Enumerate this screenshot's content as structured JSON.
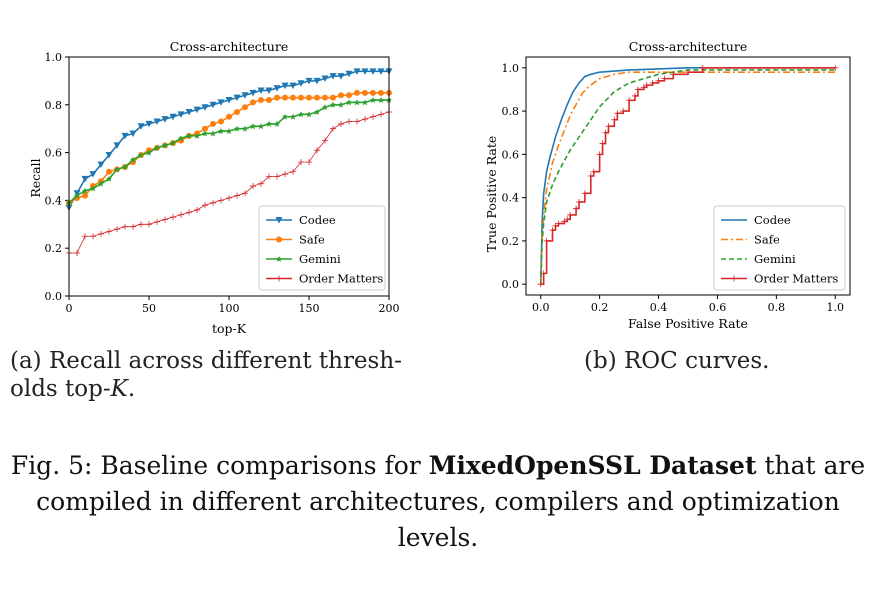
{
  "subcaption_a": {
    "label": "(a)",
    "text": "Recall across different thresh-olds top-",
    "var": "K",
    "tail": "."
  },
  "subcaption_b": {
    "label": "(b)",
    "text": "ROC curves."
  },
  "figure_caption": {
    "prefix": "Fig. 5:",
    "lead": "Baseline comparisons for",
    "bold": "MixedOpenSSL Dataset",
    "rest": "that are compiled in different architectures, compilers and optimization levels."
  },
  "colors": {
    "codee": "#1f77b4",
    "safe": "#ff7f0e",
    "gemini": "#2ca02c",
    "order": "#d62728"
  },
  "chart_data": [
    {
      "type": "line",
      "title": "Cross-architecture",
      "xlabel": "top-K",
      "ylabel": "Recall",
      "xlim": [
        0,
        200
      ],
      "ylim": [
        0,
        1.0
      ],
      "xticks": [
        0,
        50,
        100,
        150,
        200
      ],
      "yticks": [
        0.0,
        0.2,
        0.4,
        0.6,
        0.8,
        1.0
      ],
      "legend": "lower-right",
      "series": [
        {
          "name": "Codee",
          "color": "#1f77b4",
          "marker": "triangle-down",
          "x": [
            0,
            5,
            10,
            15,
            20,
            25,
            30,
            35,
            40,
            45,
            50,
            55,
            60,
            65,
            70,
            75,
            80,
            85,
            90,
            95,
            100,
            105,
            110,
            115,
            120,
            125,
            130,
            135,
            140,
            145,
            150,
            155,
            160,
            165,
            170,
            175,
            180,
            185,
            190,
            195,
            200
          ],
          "y": [
            0.37,
            0.43,
            0.49,
            0.51,
            0.55,
            0.59,
            0.63,
            0.67,
            0.68,
            0.71,
            0.72,
            0.73,
            0.74,
            0.75,
            0.76,
            0.77,
            0.78,
            0.79,
            0.8,
            0.81,
            0.82,
            0.83,
            0.84,
            0.85,
            0.86,
            0.86,
            0.87,
            0.88,
            0.88,
            0.89,
            0.9,
            0.9,
            0.91,
            0.92,
            0.92,
            0.93,
            0.94,
            0.94,
            0.94,
            0.94,
            0.94
          ]
        },
        {
          "name": "Safe",
          "color": "#ff7f0e",
          "marker": "circle",
          "x": [
            0,
            5,
            10,
            15,
            20,
            25,
            30,
            35,
            40,
            45,
            50,
            55,
            60,
            65,
            70,
            75,
            80,
            85,
            90,
            95,
            100,
            105,
            110,
            115,
            120,
            125,
            130,
            135,
            140,
            145,
            150,
            155,
            160,
            165,
            170,
            175,
            180,
            185,
            190,
            195,
            200
          ],
          "y": [
            0.39,
            0.41,
            0.42,
            0.46,
            0.48,
            0.52,
            0.53,
            0.54,
            0.56,
            0.59,
            0.61,
            0.62,
            0.63,
            0.64,
            0.65,
            0.67,
            0.68,
            0.7,
            0.72,
            0.73,
            0.75,
            0.77,
            0.79,
            0.81,
            0.82,
            0.82,
            0.83,
            0.83,
            0.83,
            0.83,
            0.83,
            0.83,
            0.83,
            0.83,
            0.84,
            0.84,
            0.85,
            0.85,
            0.85,
            0.85,
            0.85
          ]
        },
        {
          "name": "Gemini",
          "color": "#2ca02c",
          "marker": "star",
          "x": [
            0,
            5,
            10,
            15,
            20,
            25,
            30,
            35,
            40,
            45,
            50,
            55,
            60,
            65,
            70,
            75,
            80,
            85,
            90,
            95,
            100,
            105,
            110,
            115,
            120,
            125,
            130,
            135,
            140,
            145,
            150,
            155,
            160,
            165,
            170,
            175,
            180,
            185,
            190,
            195,
            200
          ],
          "y": [
            0.39,
            0.42,
            0.44,
            0.45,
            0.47,
            0.49,
            0.53,
            0.54,
            0.57,
            0.59,
            0.6,
            0.62,
            0.63,
            0.64,
            0.66,
            0.67,
            0.67,
            0.68,
            0.68,
            0.69,
            0.69,
            0.7,
            0.7,
            0.71,
            0.71,
            0.72,
            0.72,
            0.75,
            0.75,
            0.76,
            0.76,
            0.77,
            0.79,
            0.8,
            0.8,
            0.81,
            0.81,
            0.81,
            0.82,
            0.82,
            0.82
          ]
        },
        {
          "name": "Order Matters",
          "color": "#d62728",
          "marker": "plus",
          "x": [
            0,
            5,
            10,
            15,
            20,
            25,
            30,
            35,
            40,
            45,
            50,
            55,
            60,
            65,
            70,
            75,
            80,
            85,
            90,
            95,
            100,
            105,
            110,
            115,
            120,
            125,
            130,
            135,
            140,
            145,
            150,
            155,
            160,
            165,
            170,
            175,
            180,
            185,
            190,
            195,
            200
          ],
          "y": [
            0.18,
            0.18,
            0.25,
            0.25,
            0.26,
            0.27,
            0.28,
            0.29,
            0.29,
            0.3,
            0.3,
            0.31,
            0.32,
            0.33,
            0.34,
            0.35,
            0.36,
            0.38,
            0.39,
            0.4,
            0.41,
            0.42,
            0.43,
            0.46,
            0.47,
            0.5,
            0.5,
            0.51,
            0.52,
            0.56,
            0.56,
            0.61,
            0.65,
            0.7,
            0.72,
            0.73,
            0.73,
            0.74,
            0.75,
            0.76,
            0.77
          ]
        }
      ]
    },
    {
      "type": "line",
      "title": "Cross-architecture",
      "xlabel": "False Positive Rate",
      "ylabel": "True Positive Rate",
      "xlim": [
        -0.05,
        1.05
      ],
      "ylim": [
        -0.05,
        1.05
      ],
      "xticks": [
        0.0,
        0.2,
        0.4,
        0.6,
        0.8,
        1.0
      ],
      "yticks": [
        0.0,
        0.2,
        0.4,
        0.6,
        0.8,
        1.0
      ],
      "legend": "lower-right",
      "series": [
        {
          "name": "Codee",
          "color": "#1f77b4",
          "style": "solid",
          "x": [
            0,
            0.005,
            0.01,
            0.02,
            0.03,
            0.05,
            0.07,
            0.09,
            0.11,
            0.13,
            0.15,
            0.17,
            0.2,
            0.3,
            0.5,
            1.0
          ],
          "y": [
            0,
            0.3,
            0.42,
            0.52,
            0.58,
            0.68,
            0.76,
            0.83,
            0.89,
            0.93,
            0.96,
            0.97,
            0.98,
            0.99,
            1.0,
            1.0
          ]
        },
        {
          "name": "Safe",
          "color": "#ff7f0e",
          "style": "dashdot",
          "x": [
            0,
            0.005,
            0.01,
            0.02,
            0.04,
            0.06,
            0.08,
            0.1,
            0.12,
            0.14,
            0.16,
            0.2,
            0.25,
            0.3,
            0.4,
            0.5,
            1.0
          ],
          "y": [
            0,
            0.22,
            0.32,
            0.44,
            0.56,
            0.64,
            0.71,
            0.78,
            0.83,
            0.88,
            0.91,
            0.95,
            0.97,
            0.98,
            0.98,
            0.98,
            0.98
          ]
        },
        {
          "name": "Gemini",
          "color": "#2ca02c",
          "style": "dashed",
          "x": [
            0,
            0.005,
            0.01,
            0.02,
            0.04,
            0.06,
            0.08,
            0.1,
            0.13,
            0.16,
            0.2,
            0.25,
            0.3,
            0.35,
            0.4,
            0.5,
            1.0
          ],
          "y": [
            0,
            0.2,
            0.28,
            0.38,
            0.46,
            0.52,
            0.57,
            0.62,
            0.68,
            0.74,
            0.82,
            0.89,
            0.93,
            0.95,
            0.97,
            0.99,
            0.99
          ]
        },
        {
          "name": "Order Matters",
          "color": "#d62728",
          "style": "step-plus",
          "x": [
            0,
            0.01,
            0.02,
            0.04,
            0.05,
            0.06,
            0.08,
            0.09,
            0.1,
            0.12,
            0.13,
            0.15,
            0.17,
            0.18,
            0.2,
            0.21,
            0.22,
            0.23,
            0.25,
            0.26,
            0.28,
            0.3,
            0.32,
            0.33,
            0.35,
            0.36,
            0.38,
            0.4,
            0.42,
            0.45,
            0.5,
            0.55,
            1.0
          ],
          "y": [
            0,
            0.05,
            0.2,
            0.25,
            0.27,
            0.28,
            0.29,
            0.3,
            0.32,
            0.35,
            0.38,
            0.42,
            0.5,
            0.52,
            0.6,
            0.65,
            0.7,
            0.73,
            0.76,
            0.79,
            0.8,
            0.85,
            0.87,
            0.9,
            0.91,
            0.92,
            0.93,
            0.94,
            0.95,
            0.97,
            0.98,
            1.0,
            1.0
          ]
        }
      ]
    }
  ]
}
